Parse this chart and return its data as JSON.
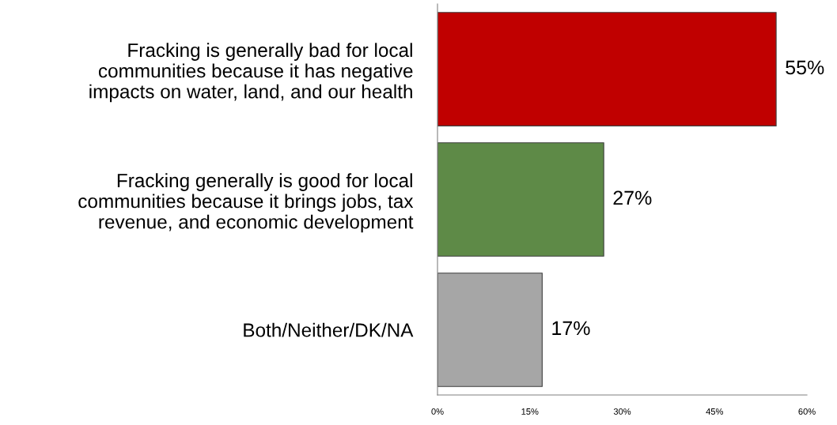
{
  "chart_data": {
    "type": "bar",
    "orientation": "horizontal",
    "categories": [
      "Fracking is generally bad for local\ncommunities because it has negative\nimpacts on water, land, and our health",
      "Fracking generally is good for local\ncommunities because it brings jobs, tax\nrevenue, and economic development",
      "Both/Neither/DK/NA"
    ],
    "values": [
      55,
      27,
      17
    ],
    "colors": [
      "#c00000",
      "#5e8a47",
      "#a6a6a6"
    ],
    "value_labels": [
      "55%",
      "27%",
      "17%"
    ],
    "xlim": [
      0,
      60
    ],
    "xticks": [
      {
        "value": 0,
        "label": "0%"
      },
      {
        "value": 15,
        "label": "15%"
      },
      {
        "value": 30,
        "label": "30%"
      },
      {
        "value": 45,
        "label": "45%"
      },
      {
        "value": 60,
        "label": "60%"
      }
    ],
    "grid": false,
    "legend": false
  }
}
